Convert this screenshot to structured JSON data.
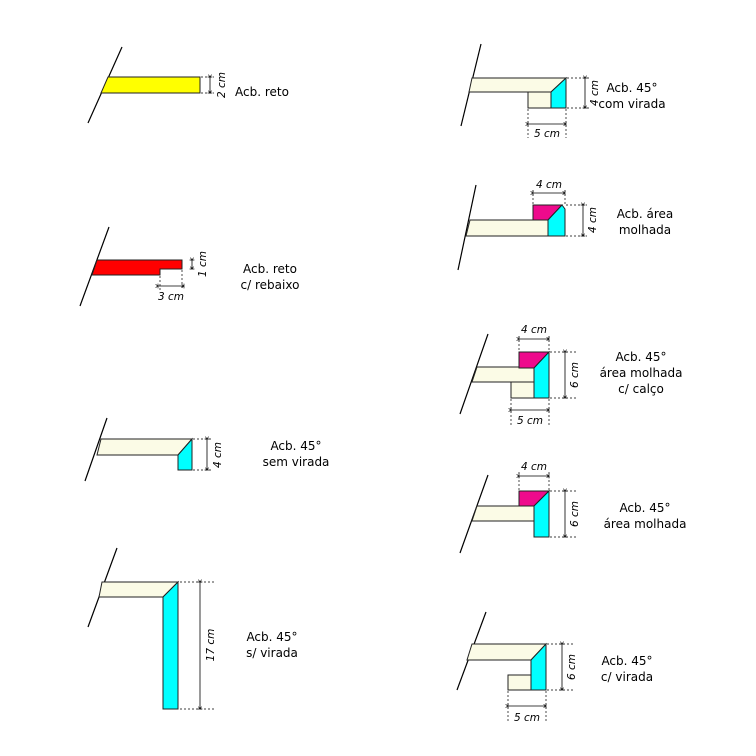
{
  "colors": {
    "cream": "#fbfbe6",
    "cyan": "#00ffff",
    "magenta": "#ee0a8c",
    "yellow": "#ffff00",
    "red": "#ff0000"
  },
  "details": [
    {
      "id": "acb-reto",
      "label": [
        "Acb. reto"
      ],
      "dims": [
        "2 cm"
      ]
    },
    {
      "id": "acb-reto-rebaixo",
      "label": [
        "Acb. reto",
        "c/ rebaixo"
      ],
      "dims": [
        "1 cm",
        "3 cm"
      ]
    },
    {
      "id": "acb-45-sem-virada",
      "label": [
        "Acb. 45°",
        "sem virada"
      ],
      "dims": [
        "4 cm"
      ]
    },
    {
      "id": "acb-45-s-virada",
      "label": [
        "Acb. 45°",
        "s/ virada"
      ],
      "dims": [
        "17 cm"
      ]
    },
    {
      "id": "acb-45-com-virada",
      "label": [
        "Acb. 45°",
        "com virada"
      ],
      "dims": [
        "4 cm",
        "5 cm"
      ]
    },
    {
      "id": "acb-area-molhada",
      "label": [
        "Acb. área",
        "molhada"
      ],
      "dims": [
        "4 cm",
        "4 cm"
      ]
    },
    {
      "id": "acb-45-area-molhada-calco",
      "label": [
        "Acb. 45°",
        "área molhada",
        "c/ calço"
      ],
      "dims": [
        "4 cm",
        "6 cm",
        "5 cm"
      ]
    },
    {
      "id": "acb-45-area-molhada",
      "label": [
        "Acb. 45°",
        "área molhada"
      ],
      "dims": [
        "4 cm",
        "6 cm"
      ]
    },
    {
      "id": "acb-45-c-virada",
      "label": [
        "Acb. 45°",
        "c/ virada"
      ],
      "dims": [
        "6 cm",
        "5 cm"
      ]
    }
  ]
}
